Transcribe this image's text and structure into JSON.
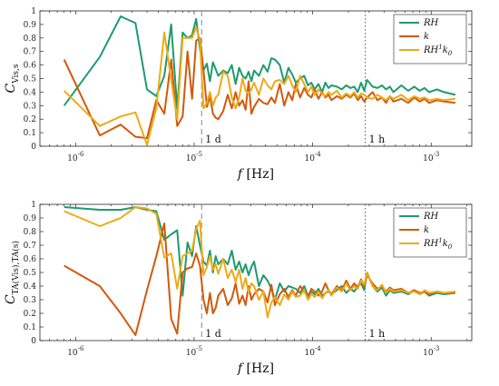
{
  "chart_data": [
    {
      "type": "line",
      "xscale": "log",
      "xlim": [
        5e-07,
        0.0022
      ],
      "ylim": [
        0,
        1
      ],
      "xlabel": "f [Hz]",
      "ylabel": "C_{Vis,s}",
      "xticks": [
        {
          "value": 1e-06,
          "base": "10",
          "exp": "-6"
        },
        {
          "value": 1e-05,
          "base": "10",
          "exp": "-5"
        },
        {
          "value": 0.0001,
          "base": "10",
          "exp": "-4"
        },
        {
          "value": 0.001,
          "base": "10",
          "exp": "-3"
        }
      ],
      "yticks": [
        "0",
        "0.1",
        "0.2",
        "0.3",
        "0.4",
        "0.5",
        "0.6",
        "0.7",
        "0.8",
        "0.9",
        "1"
      ],
      "legend_position": "top-right",
      "vlines": [
        {
          "x": 1.157e-05,
          "label": "1 d",
          "style": "dashed",
          "color": "#888888"
        },
        {
          "x": 0.0002778,
          "label": "1 h",
          "style": "dotted",
          "color": "#555555"
        }
      ],
      "x": [
        8e-07,
        1.6e-06,
        2.4e-06,
        3.2e-06,
        4e-06,
        4.8e-06,
        5.6e-06,
        6.4e-06,
        7.2e-06,
        8e-06,
        8.8e-06,
        9.6e-06,
        1.04e-05,
        1.12e-05,
        1.2e-05,
        1.28e-05,
        1.36e-05,
        1.44e-05,
        1.52e-05,
        1.6e-05,
        1.76e-05,
        1.92e-05,
        2.08e-05,
        2.24e-05,
        2.4e-05,
        2.56e-05,
        2.72e-05,
        2.88e-05,
        3.04e-05,
        3.2e-05,
        3.52e-05,
        3.84e-05,
        4.16e-05,
        4.48e-05,
        4.8e-05,
        5.28e-05,
        5.76e-05,
        6.24e-05,
        6.72e-05,
        7.2e-05,
        7.84e-05,
        8.48e-05,
        9.12e-05,
        9.76e-05,
        0.000104,
        0.000112,
        0.00012,
        0.000128,
        0.000136,
        0.000144,
        0.00016,
        0.000176,
        0.000192,
        0.000208,
        0.000224,
        0.00024,
        0.000256,
        0.000272,
        0.000288,
        0.00032,
        0.000352,
        0.000384,
        0.000416,
        0.000448,
        0.00048,
        0.00056,
        0.00064,
        0.00072,
        0.0008,
        0.00088,
        0.00096,
        0.00112,
        0.00128,
        0.0016
      ],
      "series": [
        {
          "name": "RH",
          "name_base": "RH",
          "name_sup": "",
          "name_sub": "",
          "color": "#1e9a6e",
          "values": [
            0.3,
            0.66,
            0.96,
            0.91,
            0.42,
            0.37,
            0.52,
            0.9,
            0.28,
            0.84,
            0.8,
            0.82,
            0.94,
            0.72,
            0.56,
            0.61,
            0.48,
            0.62,
            0.57,
            0.52,
            0.56,
            0.54,
            0.6,
            0.46,
            0.58,
            0.52,
            0.5,
            0.55,
            0.48,
            0.56,
            0.52,
            0.6,
            0.55,
            0.65,
            0.64,
            0.6,
            0.47,
            0.58,
            0.53,
            0.47,
            0.5,
            0.52,
            0.45,
            0.47,
            0.42,
            0.46,
            0.4,
            0.47,
            0.43,
            0.45,
            0.44,
            0.42,
            0.45,
            0.43,
            0.44,
            0.4,
            0.47,
            0.41,
            0.49,
            0.44,
            0.43,
            0.45,
            0.42,
            0.44,
            0.4,
            0.45,
            0.41,
            0.44,
            0.41,
            0.43,
            0.4,
            0.42,
            0.4,
            0.38
          ]
        },
        {
          "name": "k",
          "name_base": "k",
          "name_sup": "",
          "name_sub": "",
          "color": "#d2590b",
          "values": [
            0.64,
            0.08,
            0.16,
            0.07,
            0.06,
            0.34,
            0.24,
            0.64,
            0.15,
            0.22,
            0.7,
            0.35,
            0.78,
            0.8,
            0.56,
            0.29,
            0.37,
            0.24,
            0.21,
            0.2,
            0.26,
            0.38,
            0.28,
            0.4,
            0.3,
            0.34,
            0.27,
            0.48,
            0.24,
            0.29,
            0.35,
            0.32,
            0.31,
            0.36,
            0.32,
            0.46,
            0.3,
            0.4,
            0.34,
            0.46,
            0.36,
            0.43,
            0.38,
            0.36,
            0.42,
            0.35,
            0.4,
            0.36,
            0.38,
            0.34,
            0.37,
            0.35,
            0.38,
            0.36,
            0.39,
            0.34,
            0.37,
            0.33,
            0.36,
            0.4,
            0.34,
            0.36,
            0.32,
            0.37,
            0.33,
            0.35,
            0.32,
            0.36,
            0.33,
            0.35,
            0.32,
            0.34,
            0.33,
            0.32
          ]
        },
        {
          "name": "RH¹k₀",
          "name_base": "RH",
          "name_sup": "1",
          "name_sub": "0",
          "color": "#eeaa16",
          "values": [
            0.41,
            0.15,
            0.22,
            0.25,
            0.01,
            0.28,
            0.84,
            0.49,
            0.2,
            0.8,
            0.8,
            0.8,
            0.88,
            0.78,
            0.28,
            0.32,
            0.4,
            0.3,
            0.36,
            0.38,
            0.55,
            0.52,
            0.36,
            0.28,
            0.36,
            0.5,
            0.41,
            0.39,
            0.42,
            0.47,
            0.38,
            0.5,
            0.45,
            0.42,
            0.48,
            0.49,
            0.46,
            0.52,
            0.45,
            0.4,
            0.52,
            0.46,
            0.4,
            0.44,
            0.38,
            0.42,
            0.39,
            0.37,
            0.4,
            0.38,
            0.41,
            0.36,
            0.39,
            0.37,
            0.4,
            0.36,
            0.39,
            0.38,
            0.36,
            0.35,
            0.38,
            0.36,
            0.34,
            0.37,
            0.35,
            0.38,
            0.34,
            0.37,
            0.35,
            0.36,
            0.34,
            0.35,
            0.34,
            0.35
          ]
        }
      ]
    },
    {
      "type": "line",
      "xscale": "log",
      "xlim": [
        5e-07,
        0.0022
      ],
      "ylim": [
        0,
        1
      ],
      "xlabel": "f [Hz]",
      "ylabel": "C_{TA(Vis),TA(s)}",
      "xticks": [
        {
          "value": 1e-06,
          "base": "10",
          "exp": "-6"
        },
        {
          "value": 1e-05,
          "base": "10",
          "exp": "-5"
        },
        {
          "value": 0.0001,
          "base": "10",
          "exp": "-4"
        },
        {
          "value": 0.001,
          "base": "10",
          "exp": "-3"
        }
      ],
      "yticks": [
        "0",
        "0.1",
        "0.2",
        "0.3",
        "0.4",
        "0.5",
        "0.6",
        "0.7",
        "0.8",
        "0.9",
        "1"
      ],
      "legend_position": "top-right",
      "vlines": [
        {
          "x": 1.157e-05,
          "label": "1 d",
          "style": "dashed",
          "color": "#888888"
        },
        {
          "x": 0.0002778,
          "label": "1 h",
          "style": "dotted",
          "color": "#555555"
        }
      ],
      "x": [
        8e-07,
        1.6e-06,
        2.4e-06,
        3.2e-06,
        4e-06,
        4.8e-06,
        5.6e-06,
        6.4e-06,
        7.2e-06,
        8e-06,
        8.8e-06,
        9.6e-06,
        1.04e-05,
        1.12e-05,
        1.2e-05,
        1.28e-05,
        1.36e-05,
        1.44e-05,
        1.52e-05,
        1.6e-05,
        1.76e-05,
        1.92e-05,
        2.08e-05,
        2.24e-05,
        2.4e-05,
        2.56e-05,
        2.72e-05,
        2.88e-05,
        3.04e-05,
        3.2e-05,
        3.52e-05,
        3.84e-05,
        4.16e-05,
        4.48e-05,
        4.8e-05,
        5.28e-05,
        5.76e-05,
        6.24e-05,
        6.72e-05,
        7.2e-05,
        7.84e-05,
        8.48e-05,
        9.12e-05,
        9.76e-05,
        0.000104,
        0.000112,
        0.00012,
        0.000128,
        0.000136,
        0.000144,
        0.00016,
        0.000176,
        0.000192,
        0.000208,
        0.000224,
        0.00024,
        0.000256,
        0.000272,
        0.000288,
        0.00032,
        0.000352,
        0.000384,
        0.000416,
        0.000448,
        0.00048,
        0.00056,
        0.00064,
        0.00072,
        0.0008,
        0.00088,
        0.00096,
        0.00112,
        0.00128,
        0.0016
      ],
      "series": [
        {
          "name": "RH",
          "name_base": "RH",
          "name_sup": "",
          "name_sub": "",
          "color": "#1e9a6e",
          "values": [
            0.98,
            0.96,
            0.96,
            0.98,
            0.96,
            0.95,
            0.74,
            0.78,
            0.81,
            0.33,
            0.72,
            0.62,
            0.84,
            0.7,
            0.58,
            0.55,
            0.66,
            0.5,
            0.62,
            0.56,
            0.6,
            0.56,
            0.66,
            0.52,
            0.58,
            0.5,
            0.56,
            0.48,
            0.54,
            0.58,
            0.4,
            0.48,
            0.44,
            0.38,
            0.3,
            0.42,
            0.36,
            0.4,
            0.39,
            0.38,
            0.35,
            0.4,
            0.33,
            0.36,
            0.34,
            0.38,
            0.33,
            0.35,
            0.36,
            0.34,
            0.37,
            0.4,
            0.35,
            0.38,
            0.36,
            0.4,
            0.42,
            0.37,
            0.5,
            0.4,
            0.36,
            0.39,
            0.33,
            0.37,
            0.35,
            0.36,
            0.34,
            0.37,
            0.34,
            0.36,
            0.33,
            0.35,
            0.34,
            0.35
          ]
        },
        {
          "name": "k",
          "name_base": "k",
          "name_sup": "",
          "name_sub": "",
          "color": "#d2590b",
          "values": [
            0.55,
            0.4,
            0.2,
            0.04,
            0.37,
            0.62,
            0.86,
            0.16,
            0.05,
            0.5,
            0.53,
            0.54,
            0.64,
            0.55,
            0.3,
            0.2,
            0.35,
            0.2,
            0.24,
            0.33,
            0.38,
            0.26,
            0.31,
            0.42,
            0.27,
            0.33,
            0.26,
            0.4,
            0.3,
            0.34,
            0.38,
            0.36,
            0.28,
            0.41,
            0.26,
            0.34,
            0.38,
            0.32,
            0.37,
            0.33,
            0.4,
            0.36,
            0.32,
            0.38,
            0.36,
            0.33,
            0.36,
            0.42,
            0.37,
            0.34,
            0.4,
            0.37,
            0.44,
            0.38,
            0.42,
            0.39,
            0.45,
            0.4,
            0.48,
            0.42,
            0.38,
            0.4,
            0.36,
            0.39,
            0.37,
            0.38,
            0.35,
            0.37,
            0.35,
            0.36,
            0.34,
            0.36,
            0.35,
            0.35
          ]
        },
        {
          "name": "RH¹k₀",
          "name_base": "RH",
          "name_sup": "1",
          "name_sub": "0",
          "color": "#eeaa16",
          "values": [
            0.95,
            0.84,
            0.9,
            0.98,
            0.97,
            0.93,
            0.61,
            0.64,
            0.38,
            0.62,
            0.64,
            0.66,
            0.82,
            0.88,
            0.48,
            0.54,
            0.62,
            0.52,
            0.56,
            0.49,
            0.6,
            0.46,
            0.52,
            0.43,
            0.52,
            0.38,
            0.46,
            0.35,
            0.42,
            0.4,
            0.3,
            0.36,
            0.17,
            0.28,
            0.32,
            0.26,
            0.34,
            0.3,
            0.36,
            0.32,
            0.33,
            0.37,
            0.3,
            0.34,
            0.32,
            0.36,
            0.31,
            0.35,
            0.37,
            0.33,
            0.39,
            0.36,
            0.42,
            0.37,
            0.4,
            0.38,
            0.44,
            0.41,
            0.5,
            0.4,
            0.37,
            0.41,
            0.35,
            0.38,
            0.36,
            0.37,
            0.35,
            0.36,
            0.34,
            0.37,
            0.35,
            0.36,
            0.35,
            0.36
          ]
        }
      ]
    }
  ]
}
